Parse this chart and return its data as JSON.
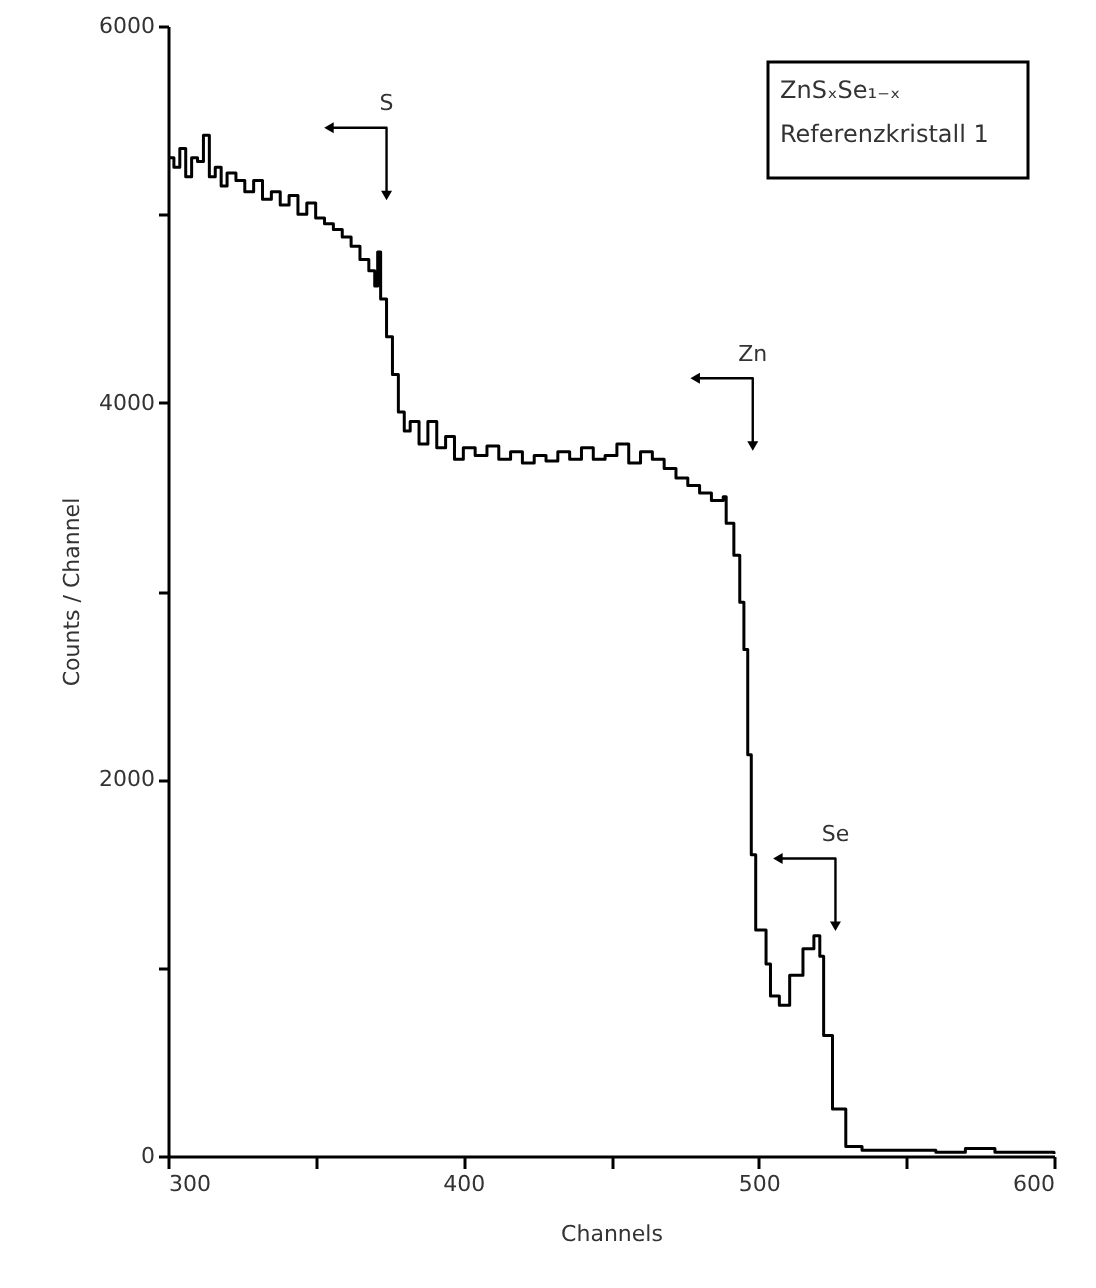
{
  "chart_data": {
    "type": "step",
    "xlabel": "Channels",
    "ylabel": "Counts / Channel",
    "xlim": [
      300,
      600
    ],
    "ylim": [
      0,
      6000
    ],
    "xticks": [
      300,
      {
        "value": 350,
        "label": null
      },
      400,
      {
        "value": 450,
        "label": null
      },
      500,
      {
        "value": 550,
        "label": null
      },
      600
    ],
    "yticks": [
      0,
      {
        "value": 1000,
        "label": null
      },
      2000,
      {
        "value": 3000,
        "label": null
      },
      4000,
      {
        "value": 5000,
        "label": null
      },
      6000
    ],
    "grid": false,
    "marker": "none",
    "line_style": "solid",
    "annotations": [
      {
        "text": "S",
        "x": 374,
        "y": 5100
      },
      {
        "text": "Zn",
        "x": 498,
        "y": 3770
      },
      {
        "text": "Se",
        "x": 526,
        "y": 1220
      },
      "ZnSₓSe₁₋ₓ",
      "Referenzkristall 1"
    ],
    "series": [
      {
        "color": "#000000",
        "x": [
          300,
          302,
          304,
          306,
          308,
          310,
          312,
          314,
          316,
          318,
          320,
          323,
          326,
          329,
          332,
          335,
          338,
          341,
          344,
          347,
          350,
          353,
          356,
          359,
          362,
          365,
          368,
          370,
          371,
          372,
          374,
          376,
          378,
          380,
          382,
          385,
          388,
          391,
          394,
          397,
          400,
          404,
          408,
          412,
          416,
          420,
          424,
          428,
          432,
          436,
          440,
          444,
          448,
          452,
          456,
          460,
          464,
          468,
          472,
          476,
          480,
          484,
          488,
          489,
          491.6,
          493.6,
          495,
          496.3,
          497.5,
          499,
          502.5,
          504,
          507,
          510.5,
          515,
          518.7,
          520.7,
          522,
          525,
          529.5,
          535,
          560,
          570,
          580,
          600
        ],
        "values": [
          5300,
          5250,
          5350,
          5200,
          5300,
          5280,
          5420,
          5200,
          5250,
          5150,
          5220,
          5180,
          5120,
          5180,
          5080,
          5120,
          5050,
          5100,
          5000,
          5060,
          4980,
          4950,
          4920,
          4880,
          4830,
          4760,
          4700,
          4620,
          4800,
          4550,
          4350,
          4150,
          3950,
          3850,
          3900,
          3780,
          3900,
          3760,
          3820,
          3700,
          3760,
          3720,
          3770,
          3700,
          3740,
          3680,
          3720,
          3690,
          3740,
          3700,
          3760,
          3700,
          3720,
          3780,
          3680,
          3740,
          3700,
          3650,
          3600,
          3560,
          3520,
          3480,
          3500,
          3360,
          3190,
          2940,
          2690,
          2130,
          1600,
          1200,
          1020,
          850,
          800,
          960,
          1100,
          1170,
          1060,
          640,
          250,
          50,
          30,
          20,
          40,
          20,
          10
        ]
      }
    ]
  }
}
